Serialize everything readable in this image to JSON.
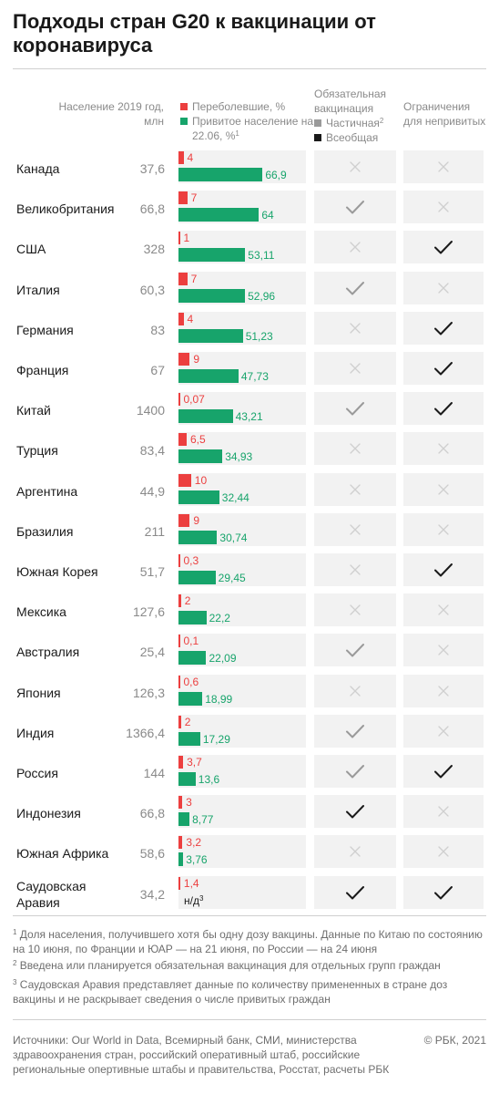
{
  "title": "Подходы стран G20 к вакцинации от коронавируса",
  "headers": {
    "population": "Население 2019 год, млн",
    "recovered": "Переболевшие, %",
    "vaccinated": "Привитое население на 22.06, %",
    "vaccinated_note": "1",
    "mandatory_title": "Обязательная вакцинация",
    "mandatory_partial": "Частичная",
    "mandatory_partial_note": "2",
    "mandatory_universal": "Всеобщая",
    "restrictions": "Ограничения для непривитых"
  },
  "colors": {
    "recovered": "#ec3f3f",
    "vaccinated": "#17a46b",
    "partial": "#9a9a9a",
    "universal": "#1a1a1a",
    "none": "#cfcfcf"
  },
  "chart_data": {
    "type": "bar",
    "categories": [
      "Канада",
      "Великобритания",
      "США",
      "Италия",
      "Германия",
      "Франция",
      "Китай",
      "Турция",
      "Аргентина",
      "Бразилия",
      "Южная Корея",
      "Мексика",
      "Австралия",
      "Япония",
      "Индия",
      "Россия",
      "Индонезия",
      "Южная Африка",
      "Саудовская Аравия"
    ],
    "population": [
      "37,6",
      "66,8",
      "328",
      "60,3",
      "83",
      "67",
      "1400",
      "83,4",
      "44,9",
      "211",
      "51,7",
      "127,6",
      "25,4",
      "126,3",
      "1366,4",
      "144",
      "66,8",
      "58,6",
      "34,2"
    ],
    "series": [
      {
        "name": "Переболевшие, %",
        "values": [
          4,
          7,
          1,
          7,
          4,
          9,
          0.07,
          6.5,
          10,
          9,
          0.3,
          2,
          0.1,
          0.6,
          2,
          3.7,
          3,
          3.2,
          1.4
        ],
        "labels": [
          "4",
          "7",
          "1",
          "7",
          "4",
          "9",
          "0,07",
          "6,5",
          "10",
          "9",
          "0,3",
          "2",
          "0,1",
          "0,6",
          "2",
          "3,7",
          "3",
          "3,2",
          "1,4"
        ]
      },
      {
        "name": "Привитое население на 22.06, %",
        "values": [
          66.9,
          64,
          53.11,
          52.96,
          51.23,
          47.73,
          43.21,
          34.93,
          32.44,
          30.74,
          29.45,
          22.2,
          22.09,
          18.99,
          17.29,
          13.6,
          8.77,
          3.76,
          null
        ],
        "labels": [
          "66,9",
          "64",
          "53,11",
          "52,96",
          "51,23",
          "47,73",
          "43,21",
          "34,93",
          "32,44",
          "30,74",
          "29,45",
          "22,2",
          "22,09",
          "18,99",
          "17,29",
          "13,6",
          "8,77",
          "3,76",
          "н/д"
        ],
        "label_notes": [
          "",
          "",
          "",
          "",
          "",
          "",
          "",
          "",
          "",
          "",
          "",
          "",
          "",
          "",
          "",
          "",
          "",
          "",
          "3"
        ]
      }
    ],
    "mandatory_vaccination": [
      "none",
      "partial",
      "none",
      "partial",
      "none",
      "none",
      "partial",
      "none",
      "none",
      "none",
      "none",
      "none",
      "partial",
      "none",
      "partial",
      "partial",
      "universal",
      "none",
      "universal"
    ],
    "restrictions_for_unvaccinated": [
      false,
      false,
      true,
      false,
      true,
      true,
      true,
      false,
      false,
      false,
      true,
      false,
      false,
      false,
      false,
      true,
      false,
      false,
      true
    ]
  },
  "notes": [
    {
      "mark": "1",
      "text": "Доля населения, получившего хотя бы одну дозу вакцины. Данные по Китаю по состоянию на 10 июня, по Франции и ЮАР — на 21 июня, по России — на 24 июня"
    },
    {
      "mark": "2",
      "text": "Введена или планируется обязательная вакцинация для отдельных групп граждан"
    },
    {
      "mark": "3",
      "text": "Саудовская Аравия представляет данные по количеству примененных в стране доз вакцины и не раскрывает сведения о числе привитых граждан"
    }
  ],
  "sources": "Источники: Our World in Data, Всемирный банк, СМИ, министерства здравоохранения стран, российский оперативный штаб, российские региональные опертивные штабы и правительства, Росстат, расчеты РБК",
  "copyright": "© РБК, 2021"
}
